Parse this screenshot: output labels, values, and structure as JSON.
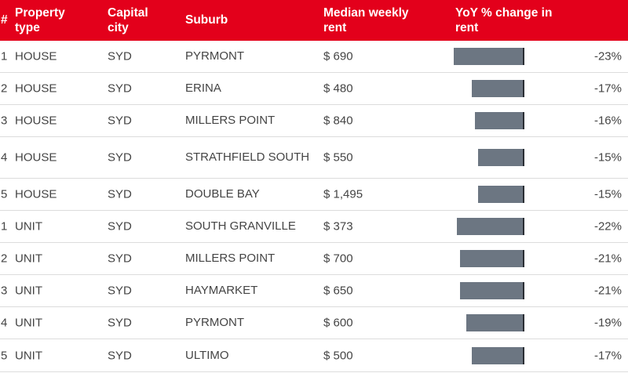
{
  "header": {
    "rank": "#",
    "property_type_line1": "Property",
    "property_type_line2": "type",
    "capital_city_line1": "Capital",
    "capital_city_line2": "city",
    "suburb": "Suburb",
    "median_rent_line1": "Median weekly",
    "median_rent_line2": "rent",
    "yoy_line1": "YoY % change in",
    "yoy_line2": "rent"
  },
  "colors": {
    "header_bg": "#e3001b",
    "bar": "#6c7682"
  },
  "rows": [
    {
      "rank": "1",
      "type": "HOUSE",
      "city": "SYD",
      "suburb": "PYRMONT",
      "rent": "$ 690",
      "pct": "-23%",
      "change": -23
    },
    {
      "rank": "2",
      "type": "HOUSE",
      "city": "SYD",
      "suburb": "ERINA",
      "rent": "$ 480",
      "pct": "-17%",
      "change": -17
    },
    {
      "rank": "3",
      "type": "HOUSE",
      "city": "SYD",
      "suburb": "MILLERS POINT",
      "rent": "$ 840",
      "pct": "-16%",
      "change": -16
    },
    {
      "rank": "4",
      "type": "HOUSE",
      "city": "SYD",
      "suburb": "STRATHFIELD SOUTH",
      "rent": "$ 550",
      "pct": "-15%",
      "change": -15
    },
    {
      "rank": "5",
      "type": "HOUSE",
      "city": "SYD",
      "suburb": "DOUBLE BAY",
      "rent": "$ 1,495",
      "pct": "-15%",
      "change": -15
    },
    {
      "rank": "1",
      "type": "UNIT",
      "city": "SYD",
      "suburb": "SOUTH GRANVILLE",
      "rent": "$ 373",
      "pct": "-22%",
      "change": -22
    },
    {
      "rank": "2",
      "type": "UNIT",
      "city": "SYD",
      "suburb": "MILLERS POINT",
      "rent": "$ 700",
      "pct": "-21%",
      "change": -21
    },
    {
      "rank": "3",
      "type": "UNIT",
      "city": "SYD",
      "suburb": "HAYMARKET",
      "rent": "$ 650",
      "pct": "-21%",
      "change": -21
    },
    {
      "rank": "4",
      "type": "UNIT",
      "city": "SYD",
      "suburb": "PYRMONT",
      "rent": "$ 600",
      "pct": "-19%",
      "change": -19
    },
    {
      "rank": "5",
      "type": "UNIT",
      "city": "SYD",
      "suburb": "ULTIMO",
      "rent": "$ 500",
      "pct": "-17%",
      "change": -17
    }
  ]
}
